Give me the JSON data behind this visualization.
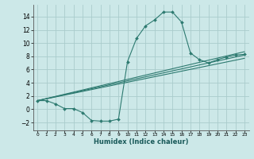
{
  "xlabel": "Humidex (Indice chaleur)",
  "bg_color": "#cce8e8",
  "grid_color": "#aacccc",
  "line_color": "#2d7a70",
  "xlim": [
    -0.5,
    23.5
  ],
  "ylim": [
    -3.2,
    15.8
  ],
  "xticks": [
    0,
    1,
    2,
    3,
    4,
    5,
    6,
    7,
    8,
    9,
    10,
    11,
    12,
    13,
    14,
    15,
    16,
    17,
    18,
    19,
    20,
    21,
    22,
    23
  ],
  "yticks": [
    -2,
    0,
    2,
    4,
    6,
    8,
    10,
    12,
    14
  ],
  "main_curve_x": [
    0,
    1,
    2,
    3,
    4,
    5,
    6,
    7,
    8,
    9,
    10,
    11,
    12,
    13,
    14,
    15,
    16,
    17,
    18,
    19,
    20,
    21,
    22,
    23
  ],
  "main_curve_y": [
    1.3,
    1.3,
    0.8,
    0.1,
    0.1,
    -0.5,
    -1.7,
    -1.8,
    -1.8,
    -1.5,
    7.2,
    10.7,
    12.6,
    13.5,
    14.7,
    14.7,
    13.2,
    8.5,
    7.5,
    7.0,
    7.5,
    7.9,
    8.2,
    8.3
  ],
  "line1_x": [
    0,
    23
  ],
  "line1_y": [
    1.3,
    8.7
  ],
  "line2_x": [
    0,
    23
  ],
  "line2_y": [
    1.3,
    8.2
  ],
  "line3_x": [
    0,
    23
  ],
  "line3_y": [
    1.3,
    7.7
  ]
}
